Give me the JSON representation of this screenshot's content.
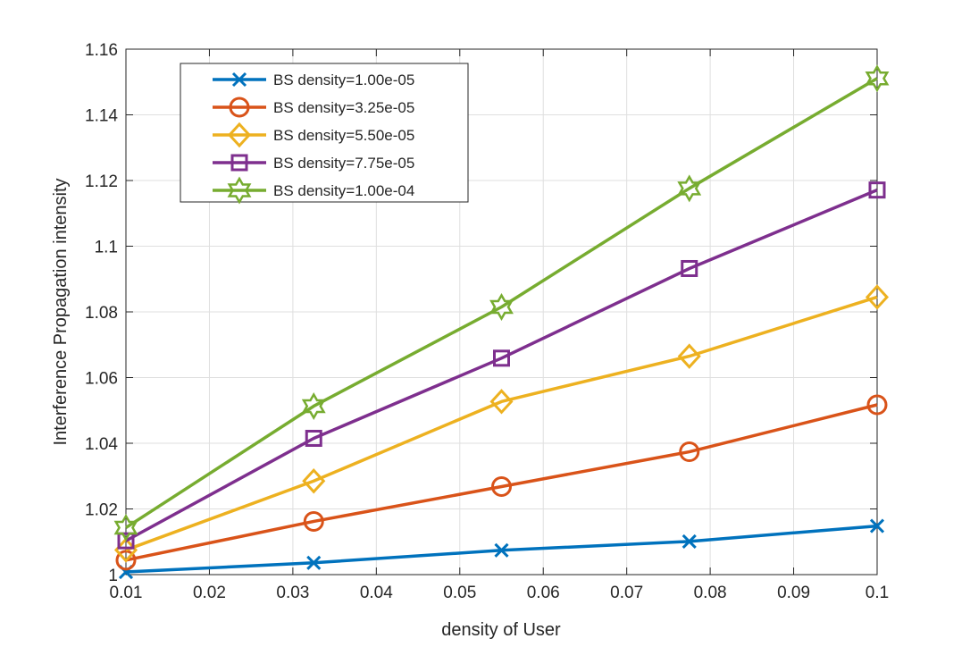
{
  "chart_data": {
    "type": "line",
    "title": "",
    "xlabel": "density of User",
    "ylabel": "Interference Propagation intensity",
    "xlim": [
      0.01,
      0.1
    ],
    "ylim": [
      1.0,
      1.16
    ],
    "grid": true,
    "legend_position": "top-left",
    "xticks": [
      0.01,
      0.02,
      0.03,
      0.04,
      0.05,
      0.06,
      0.07,
      0.08,
      0.09,
      0.1
    ],
    "xtick_labels": [
      "0.01",
      "0.02",
      "0.03",
      "0.04",
      "0.05",
      "0.06",
      "0.07",
      "0.08",
      "0.09",
      "0.1"
    ],
    "yticks": [
      1.0,
      1.02,
      1.04,
      1.06,
      1.08,
      1.1,
      1.12,
      1.14,
      1.16
    ],
    "ytick_labels": [
      "1",
      "1.02",
      "1.04",
      "1.06",
      "1.08",
      "1.1",
      "1.12",
      "1.14",
      "1.16"
    ],
    "x": [
      0.01,
      0.0325,
      0.055,
      0.0775,
      0.1
    ],
    "series": [
      {
        "name": "BS density=1.00e-05",
        "color": "#0072BD",
        "marker": "x",
        "values": [
          1.0008,
          1.0036,
          1.0074,
          1.0101,
          1.0148
        ]
      },
      {
        "name": "BS density=3.25e-05",
        "color": "#D95319",
        "marker": "circle",
        "values": [
          1.0044,
          1.0162,
          1.0268,
          1.0374,
          1.0517
        ]
      },
      {
        "name": "BS density=5.50e-05",
        "color": "#EDB120",
        "marker": "diamond",
        "values": [
          1.0075,
          1.0285,
          1.0527,
          1.0665,
          1.0845
        ]
      },
      {
        "name": "BS density=7.75e-05",
        "color": "#7E2F8E",
        "marker": "square",
        "values": [
          1.0103,
          1.0415,
          1.0659,
          1.0932,
          1.1171
        ]
      },
      {
        "name": "BS density=1.00e-04",
        "color": "#77AC30",
        "marker": "hexagram",
        "values": [
          1.0143,
          1.0513,
          1.0815,
          1.1176,
          1.1511
        ]
      }
    ]
  }
}
